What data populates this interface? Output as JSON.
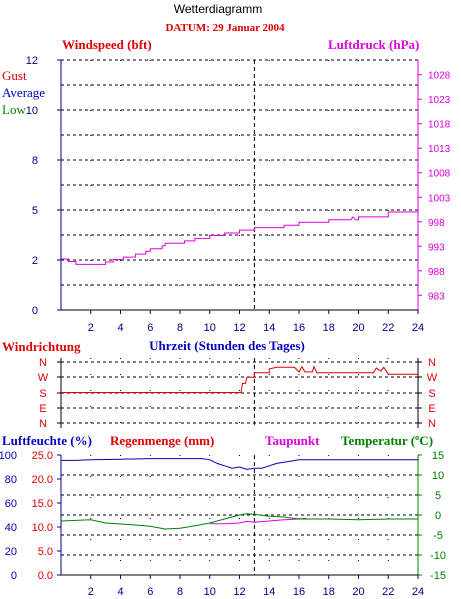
{
  "header": {
    "title": "Wetterdiagramm",
    "date_label": "DATUM: 29 Januar 2004"
  },
  "colors": {
    "red": "#e00000",
    "magenta": "#e000e0",
    "blue": "#0000c0",
    "green": "#008000",
    "dark_blue": "#00008b",
    "grid": "#000000"
  },
  "chart_data": [
    {
      "type": "line",
      "title": "",
      "xlabel": "",
      "x_ticks": [
        "2",
        "4",
        "6",
        "8",
        "10",
        "12",
        "14",
        "16",
        "18",
        "20",
        "22",
        "24"
      ],
      "xlim": [
        0,
        24
      ],
      "left_axis": {
        "label": "Windspeed (bft)",
        "ylim": [
          0,
          12
        ],
        "ticks": [
          "0",
          "2",
          "5",
          "8",
          "10",
          "12"
        ],
        "tick_values": [
          0,
          2.4,
          4.8,
          7.2,
          9.6,
          12
        ]
      },
      "right_axis": {
        "label": "Luftdruck (hPa)",
        "ylim": [
          980,
          1031
        ],
        "ticks": [
          "983",
          "988",
          "993",
          "998",
          "1003",
          "1008",
          "1013",
          "1018",
          "1023",
          "1028"
        ],
        "tick_values": [
          983,
          988,
          993,
          998,
          1003,
          1008,
          1013,
          1018,
          1023,
          1028
        ]
      },
      "legend": [
        "Gust",
        "Average",
        "Low"
      ],
      "legend_position": "top-left",
      "grid": true,
      "marker_x": 13,
      "series": [
        {
          "name": "Luftdruck",
          "color": "#e000e0",
          "axis": "right",
          "points": [
            [
              0,
              990.4
            ],
            [
              0.5,
              990.4
            ],
            [
              0.5,
              989.9
            ],
            [
              1,
              989.9
            ],
            [
              1,
              989.3
            ],
            [
              3,
              989.3
            ],
            [
              3,
              989.8
            ],
            [
              3.5,
              989.8
            ],
            [
              3.5,
              990.3
            ],
            [
              4.2,
              990.3
            ],
            [
              4.2,
              990.8
            ],
            [
              5,
              990.8
            ],
            [
              5,
              991.4
            ],
            [
              5.7,
              991.4
            ],
            [
              5.7,
              992.0
            ],
            [
              6,
              992.0
            ],
            [
              6,
              992.5
            ],
            [
              6.8,
              992.5
            ],
            [
              6.8,
              993.1
            ],
            [
              7,
              993.1
            ],
            [
              7,
              993.6
            ],
            [
              8.3,
              993.6
            ],
            [
              8.3,
              994.1
            ],
            [
              9,
              994.1
            ],
            [
              9,
              994.6
            ],
            [
              10,
              994.6
            ],
            [
              10,
              995.2
            ],
            [
              11,
              995.2
            ],
            [
              11,
              995.7
            ],
            [
              12,
              995.7
            ],
            [
              12,
              996.3
            ],
            [
              13,
              996.3
            ],
            [
              13,
              996.8
            ],
            [
              15,
              996.8
            ],
            [
              15,
              997.3
            ],
            [
              16,
              997.3
            ],
            [
              16,
              997.9
            ],
            [
              18,
              997.9
            ],
            [
              18,
              998.4
            ],
            [
              19.5,
              998.4
            ],
            [
              19.6,
              999.0
            ],
            [
              19.8,
              998.4
            ],
            [
              20,
              998.4
            ],
            [
              20,
              999.0
            ],
            [
              22,
              999.0
            ],
            [
              22,
              1000.0
            ],
            [
              24,
              1000.0
            ]
          ]
        }
      ]
    },
    {
      "type": "line",
      "title": "",
      "xlabel": "Uhrzeit (Stunden des Tages)",
      "left_axis": {
        "label": "Windrichtung",
        "ticks": [
          "N",
          "W",
          "S",
          "E",
          "N"
        ]
      },
      "right_axis": {
        "label": "",
        "ticks": [
          "N",
          "W",
          "S",
          "E",
          "N"
        ]
      },
      "grid": true,
      "marker_x": 13,
      "series": [
        {
          "name": "Windrichtung",
          "color": "#e00000",
          "points": [
            [
              0,
              2.0
            ],
            [
              12.1,
              2.0
            ],
            [
              12.2,
              2.6
            ],
            [
              12.4,
              2.6
            ],
            [
              12.5,
              3.0
            ],
            [
              13,
              3.0
            ],
            [
              13,
              3.3
            ],
            [
              14,
              3.3
            ],
            [
              14,
              3.55
            ],
            [
              14.5,
              3.65
            ],
            [
              15.7,
              3.65
            ],
            [
              16,
              3.35
            ],
            [
              16.2,
              3.7
            ],
            [
              16.4,
              3.35
            ],
            [
              16.9,
              3.35
            ],
            [
              17,
              3.7
            ],
            [
              17.2,
              3.3
            ],
            [
              21,
              3.3
            ],
            [
              21.2,
              3.6
            ],
            [
              21.5,
              3.4
            ],
            [
              21.7,
              3.65
            ],
            [
              22,
              3.2
            ],
            [
              24,
              3.2
            ]
          ]
        }
      ]
    },
    {
      "type": "line",
      "title": "",
      "xlabel": "",
      "x_ticks": [
        "2",
        "4",
        "6",
        "8",
        "10",
        "12",
        "14",
        "16",
        "18",
        "20",
        "22",
        "24"
      ],
      "xlim": [
        0,
        24
      ],
      "axes": {
        "humidity": {
          "label": "Luftfeuchte (%)",
          "ticks": [
            "0",
            "20",
            "40",
            "60",
            "80",
            "100"
          ],
          "ylim": [
            0,
            100
          ]
        },
        "rain": {
          "label": "Regenmenge (mm)",
          "ticks": [
            "0.0",
            "5.0",
            "10.0",
            "15.0",
            "20.0",
            "25.0"
          ],
          "ylim": [
            0,
            25
          ]
        },
        "dewpoint": {
          "label": "Taupunkt"
        },
        "temperature": {
          "label": "Temperatur (ºC)",
          "ticks": [
            "-15",
            "-10",
            "-5",
            "0",
            "5",
            "10",
            "15"
          ],
          "ylim": [
            -15,
            15
          ]
        }
      },
      "grid": true,
      "marker_x": 13,
      "series": [
        {
          "name": "Luftfeuchte",
          "color": "#0000c0",
          "axis": "humidity",
          "points": [
            [
              0,
              95.5
            ],
            [
              1,
              95.5
            ],
            [
              2,
              96
            ],
            [
              4,
              96.5
            ],
            [
              6,
              97
            ],
            [
              8,
              97
            ],
            [
              9.5,
              97
            ],
            [
              10,
              96
            ],
            [
              10.5,
              93
            ],
            [
              11,
              91
            ],
            [
              11.5,
              89
            ],
            [
              12,
              90
            ],
            [
              12.5,
              88
            ],
            [
              13,
              89
            ],
            [
              13.5,
              89
            ],
            [
              14,
              91
            ],
            [
              14.5,
              93
            ],
            [
              15,
              94
            ],
            [
              16,
              96
            ],
            [
              18,
              96
            ],
            [
              20,
              96
            ],
            [
              22,
              96
            ],
            [
              24,
              96
            ]
          ]
        },
        {
          "name": "Taupunkt",
          "color": "#e000e0",
          "axis": "temperature",
          "points": [
            [
              10,
              -2.2
            ],
            [
              11,
              -2.2
            ],
            [
              12,
              -2
            ],
            [
              12.5,
              -1.6
            ],
            [
              13,
              -1.8
            ],
            [
              14,
              -1.5
            ],
            [
              15,
              -1.2
            ],
            [
              16,
              -1.0
            ],
            [
              16.5,
              -0.8
            ]
          ]
        },
        {
          "name": "Temperatur",
          "color": "#008000",
          "axis": "temperature",
          "points": [
            [
              0,
              -1.5
            ],
            [
              2,
              -1.2
            ],
            [
              3,
              -2.0
            ],
            [
              5,
              -2.5
            ],
            [
              6,
              -2.8
            ],
            [
              7,
              -3.5
            ],
            [
              8,
              -3.3
            ],
            [
              9,
              -2.7
            ],
            [
              10,
              -2.0
            ],
            [
              11,
              -1.0
            ],
            [
              12,
              0.0
            ],
            [
              12.5,
              0.3
            ],
            [
              13,
              0.2
            ],
            [
              14,
              -0.3
            ],
            [
              15,
              -0.5
            ],
            [
              16,
              -1.0
            ],
            [
              18,
              -1.0
            ],
            [
              20,
              -1.2
            ],
            [
              22,
              -1.0
            ],
            [
              24,
              -1.0
            ]
          ]
        }
      ]
    }
  ]
}
